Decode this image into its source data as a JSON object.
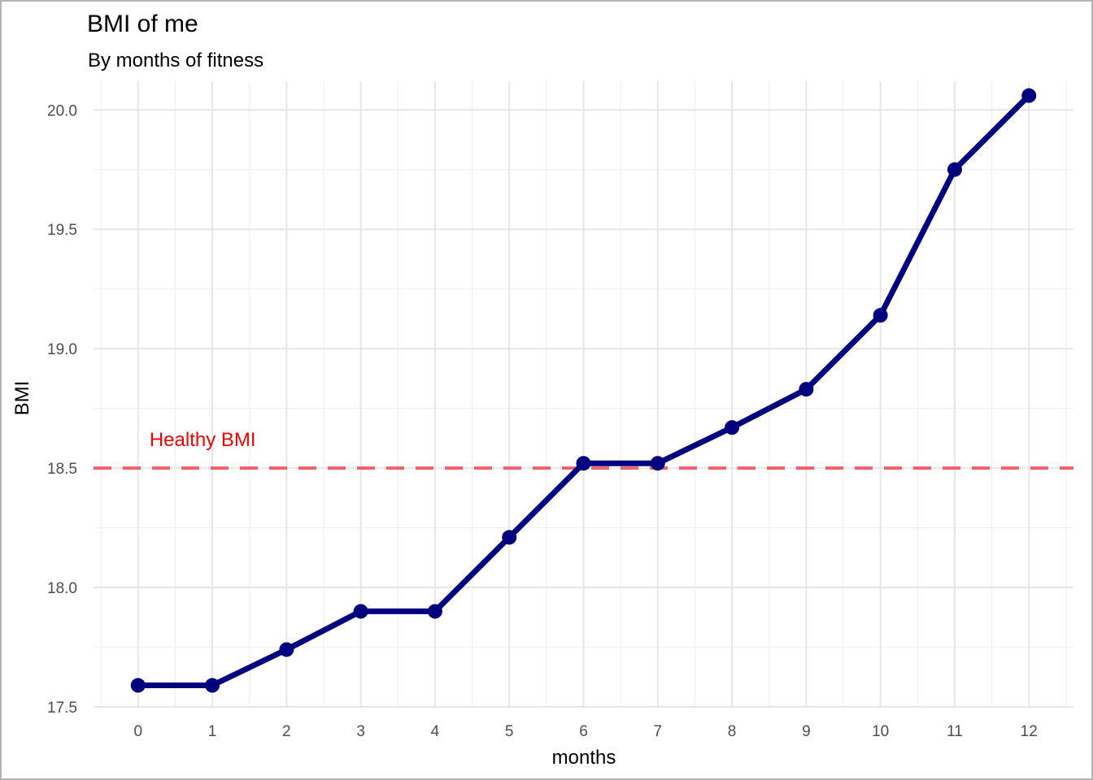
{
  "chart_data": {
    "type": "line",
    "title": "BMI of me",
    "subtitle": "By months of fitness",
    "xlabel": "months",
    "ylabel": "BMI",
    "x": [
      0,
      1,
      2,
      3,
      4,
      5,
      6,
      7,
      8,
      9,
      10,
      11,
      12
    ],
    "series": [
      {
        "values": [
          17.59,
          17.59,
          17.74,
          17.9,
          17.9,
          18.21,
          18.52,
          18.52,
          18.67,
          18.83,
          19.14,
          19.75,
          20.06
        ]
      }
    ],
    "xlim": [
      -0.6,
      12.6
    ],
    "ylim": [
      17.5,
      20.12
    ],
    "x_ticks": [
      0,
      1,
      2,
      3,
      4,
      5,
      6,
      7,
      8,
      9,
      10,
      11,
      12
    ],
    "x_tick_labels": [
      "0",
      "1",
      "2",
      "3",
      "4",
      "5",
      "6",
      "7",
      "8",
      "9",
      "10",
      "11",
      "12"
    ],
    "y_ticks": [
      17.5,
      18.0,
      18.5,
      19.0,
      19.5,
      20.0
    ],
    "y_tick_labels": [
      "17.5",
      "18.0",
      "18.5",
      "19.0",
      "19.5",
      "20.0"
    ],
    "grid": true,
    "reference_line": {
      "y": 18.5,
      "style": "dashed",
      "color": "#f0606a"
    },
    "annotations": [
      {
        "text": "Healthy BMI",
        "x": 0.87,
        "y": 18.62,
        "color": "#ee0000"
      }
    ],
    "line_color": "#00007f",
    "point_color": "#00007f",
    "theme": "minimal"
  }
}
